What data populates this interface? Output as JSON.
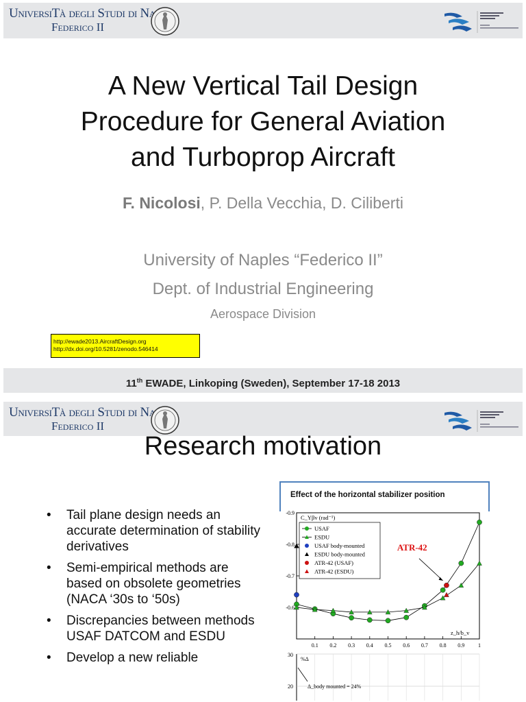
{
  "slide1": {
    "header": {
      "university_line1": "UniversiTà degli Studi di Napoli",
      "university_line2": "Federico II"
    },
    "title_lines": [
      "A New Vertical Tail Design",
      "Procedure for  General Aviation",
      "and Turboprop Aircraft"
    ],
    "authors": {
      "lead": "F. Nicolosi",
      "others": ", P. Della Vecchia, D. Ciliberti"
    },
    "affiliation": {
      "university": "University of Naples “Federico II”",
      "department": "Dept. of Industrial Engineering",
      "division": "Aerospace Division"
    },
    "links": [
      "http://ewade2013.AircraftDesign.org",
      "http://dx.doi.org/10.5281/zenodo.546414"
    ],
    "footer": {
      "ordinal": "11",
      "suffix": "th",
      "rest": " EWADE, Linkoping (Sweden), September 17-18 2013"
    }
  },
  "slide2": {
    "header": {
      "university_line1": "UniversiTà degli Studi di Napoli",
      "university_line2": "Federico II"
    },
    "title": "Research motivation",
    "bullets": [
      "Tail plane design needs an accurate determination of stability derivatives",
      "Semi-empirical methods are based on obsolete geometries (NACA ‘30s to ‘50s)",
      "Discrepancies between methods USAF DATCOM and ESDU",
      "Develop a new reliable"
    ],
    "bullet_symbol": "•"
  },
  "chart_data": {
    "type": "line",
    "title": "Effect of the horizontal stabilizer position",
    "xlabel": "z_h/b_v",
    "ylabel": "C_Yβv (rad⁻¹)",
    "xlim": [
      0,
      1
    ],
    "ylim": [
      -0.5,
      -0.9
    ],
    "x_ticks": [
      "0.1",
      "0.2",
      "0.3",
      "0.4",
      "0.5",
      "0.6",
      "0.7",
      "0.8",
      "0.9",
      "1"
    ],
    "y_ticks": [
      "-0.9",
      "-0.8",
      "-0.7",
      "-0.6"
    ],
    "series": [
      {
        "name": "USAF",
        "color": "#22aa22",
        "marker": "circle",
        "x": [
          0,
          0.1,
          0.2,
          0.3,
          0.4,
          0.5,
          0.6,
          0.7,
          0.8,
          0.9,
          1.0
        ],
        "y": [
          -0.61,
          -0.595,
          -0.58,
          -0.567,
          -0.56,
          -0.558,
          -0.568,
          -0.605,
          -0.655,
          -0.74,
          -0.87
        ]
      },
      {
        "name": "ESDU",
        "color": "#22aa22",
        "marker": "triangle",
        "x": [
          0,
          0.1,
          0.2,
          0.3,
          0.4,
          0.5,
          0.6,
          0.7,
          0.8,
          0.9,
          1.0
        ],
        "y": [
          -0.6,
          -0.593,
          -0.59,
          -0.585,
          -0.585,
          -0.585,
          -0.59,
          -0.6,
          -0.63,
          -0.67,
          -0.74
        ]
      },
      {
        "name": "USAF body-mounted",
        "color": "#1f3fbf",
        "marker": "circle",
        "x": [
          0
        ],
        "y": [
          -0.64
        ]
      },
      {
        "name": "ESDU body-mounted",
        "color": "#000000",
        "marker": "triangle",
        "x": [
          0
        ],
        "y": [
          -0.795
        ]
      },
      {
        "name": "ATR-42 (USAF)",
        "color": "#cc1111",
        "marker": "circle",
        "x": [
          0.82
        ],
        "y": [
          -0.67
        ]
      },
      {
        "name": "ATR-42 (ESDU)",
        "color": "#cc1111",
        "marker": "triangle",
        "x": [
          0.82
        ],
        "y": [
          -0.64
        ]
      }
    ],
    "annotation": "ATR-42",
    "second_chart": {
      "ylabel": "%Δ",
      "y_ticks": [
        "30",
        "20"
      ],
      "annotation": "Δ_body mounted = 24%"
    }
  }
}
